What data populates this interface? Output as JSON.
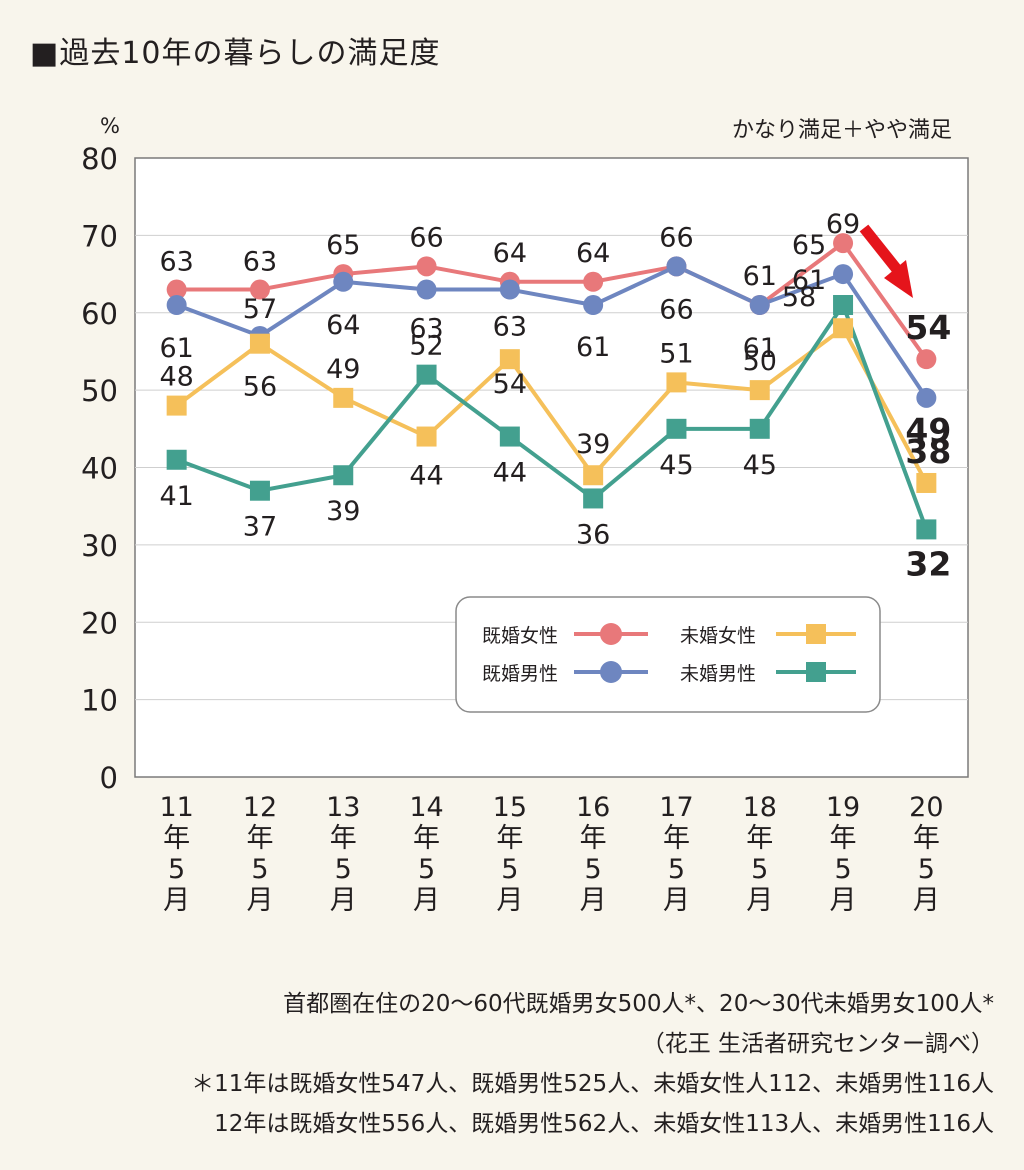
{
  "header": {
    "title": "■過去10年の暮らしの満足度",
    "unit_label": "%",
    "measure_label": "かなり満足＋やや満足"
  },
  "chart_data": {
    "type": "line",
    "x": [
      "11年5月",
      "12年5月",
      "13年5月",
      "14年5月",
      "15年5月",
      "16年5月",
      "17年5月",
      "18年5月",
      "19年5月",
      "20年5月"
    ],
    "xlabel": "",
    "ylabel": "%",
    "ylim": [
      0,
      80
    ],
    "yticks": [
      0,
      10,
      20,
      30,
      40,
      50,
      60,
      70,
      80
    ],
    "grid": true,
    "legend_position": "bottom-right",
    "series": [
      {
        "name": "既婚女性",
        "marker": "circle",
        "color": "#e8787a",
        "values": [
          63,
          63,
          65,
          66,
          64,
          64,
          66,
          61,
          69,
          54
        ]
      },
      {
        "name": "既婚男性",
        "marker": "circle",
        "color": "#6e86c0",
        "values": [
          61,
          57,
          64,
          63,
          63,
          61,
          66,
          61,
          65,
          49
        ]
      },
      {
        "name": "未婚女性",
        "marker": "square",
        "color": "#f5c05a",
        "values": [
          48,
          56,
          49,
          44,
          54,
          39,
          51,
          50,
          58,
          38
        ]
      },
      {
        "name": "未婚男性",
        "marker": "square",
        "color": "#43a08f",
        "values": [
          41,
          37,
          39,
          52,
          44,
          36,
          45,
          45,
          61,
          32
        ]
      }
    ],
    "annotations": [
      "red arrow pointing down toward 20年5月"
    ]
  },
  "notes": {
    "line1": "首都圏在住の20～60代既婚男女500人*、20～30代未婚男女100人*",
    "line2": "（花王 生活者研究センター調べ）",
    "line3": "＊11年は既婚女性547人、既婚男性525人、未婚女性人112、未婚男性116人",
    "line4": "12年は既婚女性556人、既婚男性562人、未婚女性113人、未婚男性116人"
  }
}
